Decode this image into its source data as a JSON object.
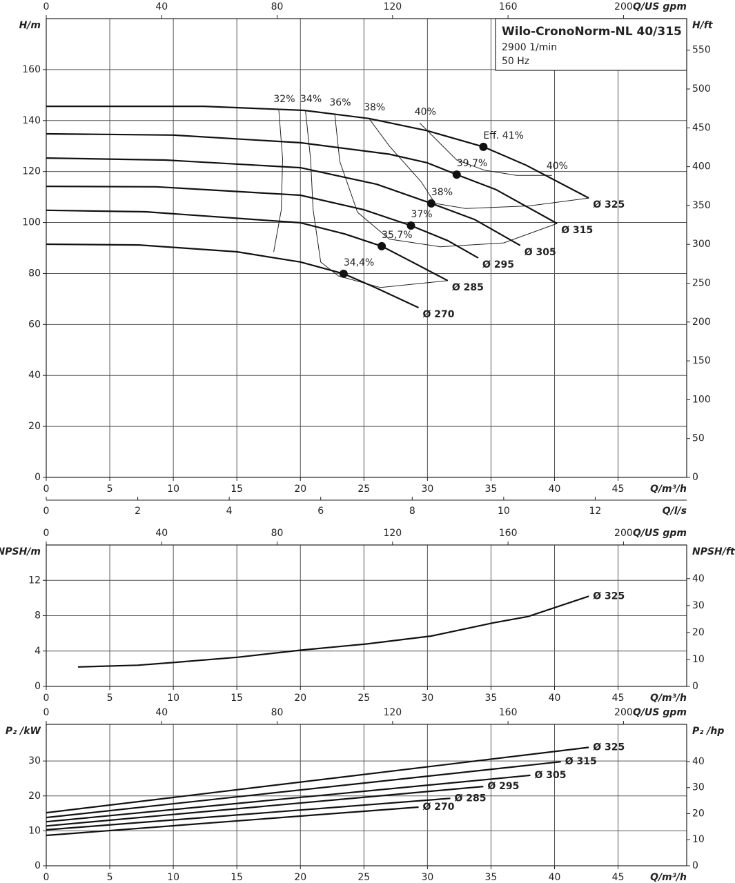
{
  "chart_data": [
    {
      "type": "line",
      "title": "Wilo-CronoNorm-NL 40/315",
      "subtitle": [
        "2900 1/min",
        "50 Hz"
      ],
      "xlabel": "Q/m³/h",
      "xlim": [
        0,
        50.4
      ],
      "xticks": [
        0,
        5,
        10,
        15,
        20,
        25,
        30,
        35,
        40,
        45
      ],
      "x2label": "Q/US gpm",
      "x2lim": [
        0,
        221.9
      ],
      "x2ticks": [
        0,
        40,
        80,
        120,
        160,
        200
      ],
      "x3label": "Q/l/s",
      "x3lim": [
        0,
        14
      ],
      "x3ticks": [
        0,
        2,
        4,
        6,
        8,
        10,
        12
      ],
      "ylabel": "H/m",
      "ylim": [
        0,
        180
      ],
      "yticks": [
        0,
        20,
        40,
        60,
        80,
        100,
        120,
        140,
        160
      ],
      "y2label": "H/ft",
      "y2lim": [
        0,
        590.6
      ],
      "y2ticks": [
        0,
        50,
        100,
        150,
        200,
        250,
        300,
        350,
        400,
        450,
        500,
        550
      ],
      "grid": true,
      "series": [
        {
          "name": "Ø 325",
          "color": "#111111",
          "x": [
            0,
            12.4,
            20.3,
            25.4,
            30,
            34.4,
            37.8,
            42.7
          ],
          "values": [
            145.6,
            145.6,
            144,
            140.8,
            136,
            129.7,
            122.4,
            109.6
          ]
        },
        {
          "name": "Ø 315",
          "color": "#111111",
          "x": [
            0,
            10,
            20,
            27,
            30,
            32.3,
            35.4,
            40.2
          ],
          "values": [
            134.8,
            134.3,
            131.3,
            126.8,
            123.4,
            118.8,
            112.9,
            99.6
          ]
        },
        {
          "name": "Ø 305",
          "color": "#111111",
          "x": [
            0,
            9.4,
            20,
            26,
            30.3,
            33.7,
            37.3
          ],
          "values": [
            125.3,
            124.5,
            121.5,
            115,
            107.5,
            101.2,
            91
          ]
        },
        {
          "name": "Ø 295",
          "color": "#111111",
          "x": [
            0,
            8.7,
            20,
            25,
            28.7,
            31.6,
            34
          ],
          "values": [
            114.2,
            114,
            110.7,
            105,
            98.8,
            92.9,
            86.1
          ]
        },
        {
          "name": "Ø 285",
          "color": "#111111",
          "x": [
            0,
            7.8,
            20,
            23.5,
            26.4,
            28.8,
            31.6
          ],
          "values": [
            104.8,
            104.2,
            99.9,
            95.5,
            90.7,
            84.5,
            77.2
          ]
        },
        {
          "name": "Ø 270",
          "color": "#111111",
          "x": [
            0,
            7.3,
            15,
            20,
            23.4,
            25.8,
            29.3
          ],
          "values": [
            91.5,
            91.2,
            88.5,
            84.5,
            79.9,
            74.7,
            66.6
          ]
        }
      ],
      "best_points": {
        "x": [
          34.4,
          32.3,
          30.3,
          28.7,
          26.4,
          23.4
        ],
        "values": [
          129.7,
          118.8,
          107.5,
          98.8,
          90.7,
          79.9
        ],
        "labels": [
          "Eff. 41%",
          "39,7%",
          "38%",
          "37%",
          "35,7%",
          "34,4%"
        ]
      },
      "iso_efficiency": [
        {
          "name": "32%",
          "x": [
            18.3,
            18.6,
            18.5,
            17.9
          ],
          "values": [
            144,
            125,
            105,
            88.5
          ]
        },
        {
          "name": "34%",
          "x": [
            20.4,
            20.8,
            21,
            21.6,
            23,
            26.3,
            31.6
          ],
          "values": [
            144,
            125,
            105,
            84.5,
            79,
            74.5,
            77.2
          ]
        },
        {
          "name": "36%",
          "x": [
            22.7,
            23.1,
            24.5,
            27,
            31,
            36,
            40.2
          ],
          "values": [
            142.7,
            124,
            104,
            93.5,
            90.5,
            92,
            99.6
          ]
        },
        {
          "name": "38%",
          "x": [
            25.4,
            27,
            29.5,
            30.6,
            33,
            38,
            42.7
          ],
          "values": [
            140.8,
            130,
            116,
            107.5,
            105.5,
            106.5,
            109.6
          ]
        },
        {
          "name": "40%",
          "x": [
            29.4,
            32.3,
            34.5,
            37,
            39.8
          ],
          "values": [
            139,
            124.5,
            120.5,
            118.5,
            118.5
          ],
          "end_label": "40%"
        }
      ]
    },
    {
      "type": "line",
      "xlabel": "Q/m³/h",
      "xlim": [
        0,
        50.4
      ],
      "xticks": [
        0,
        5,
        10,
        15,
        20,
        25,
        30,
        35,
        40,
        45
      ],
      "x2label": "Q/US gpm",
      "x2lim": [
        0,
        221.9
      ],
      "x2ticks": [
        0,
        40,
        80,
        120,
        160,
        200
      ],
      "ylabel": "NPSH/m",
      "ylim": [
        0,
        16
      ],
      "yticks": [
        0,
        4,
        8,
        12
      ],
      "y2label": "NPSH/ft",
      "y2lim": [
        0,
        52.49
      ],
      "y2ticks": [
        0,
        10,
        20,
        30,
        40
      ],
      "grid": true,
      "series": [
        {
          "name": "Ø 325",
          "color": "#111111",
          "x": [
            2.5,
            7.2,
            10,
            15.1,
            20,
            25.2,
            30.3,
            35.2,
            37.9,
            42.7
          ],
          "values": [
            2.2,
            2.4,
            2.7,
            3.3,
            4.1,
            4.8,
            5.7,
            7.2,
            7.9,
            10.2
          ]
        }
      ]
    },
    {
      "type": "line",
      "xlabel": "Q/m³/h",
      "xlim": [
        0,
        50.4
      ],
      "xticks": [
        0,
        5,
        10,
        15,
        20,
        25,
        30,
        35,
        40,
        45
      ],
      "x2label": "Q/US gpm",
      "x2lim": [
        0,
        221.9
      ],
      "x2ticks": [
        0,
        40,
        80,
        120,
        160,
        200
      ],
      "ylabel": "P₂ /kW",
      "ylim": [
        0,
        40.5
      ],
      "yticks": [
        0,
        10,
        20,
        30
      ],
      "y2label": "P₂ /hp",
      "y2lim": [
        0,
        54.3
      ],
      "y2ticks": [
        0,
        10,
        20,
        30,
        40
      ],
      "grid": true,
      "series": [
        {
          "name": "Ø 325",
          "color": "#111111",
          "x": [
            0,
            42.7
          ],
          "values": [
            15.2,
            33.9
          ]
        },
        {
          "name": "Ø 315",
          "color": "#111111",
          "x": [
            0,
            40.5
          ],
          "values": [
            13.8,
            29.8
          ]
        },
        {
          "name": "Ø 305",
          "color": "#111111",
          "x": [
            0,
            38.1
          ],
          "values": [
            12.6,
            25.9
          ]
        },
        {
          "name": "Ø 295",
          "color": "#111111",
          "x": [
            0,
            34.4
          ],
          "values": [
            11.4,
            22.7
          ]
        },
        {
          "name": "Ø 285",
          "color": "#111111",
          "x": [
            0,
            31.8
          ],
          "values": [
            10.3,
            19.3
          ]
        },
        {
          "name": "Ø 270",
          "color": "#111111",
          "x": [
            0,
            29.3
          ],
          "values": [
            8.7,
            16.8
          ]
        }
      ]
    }
  ]
}
